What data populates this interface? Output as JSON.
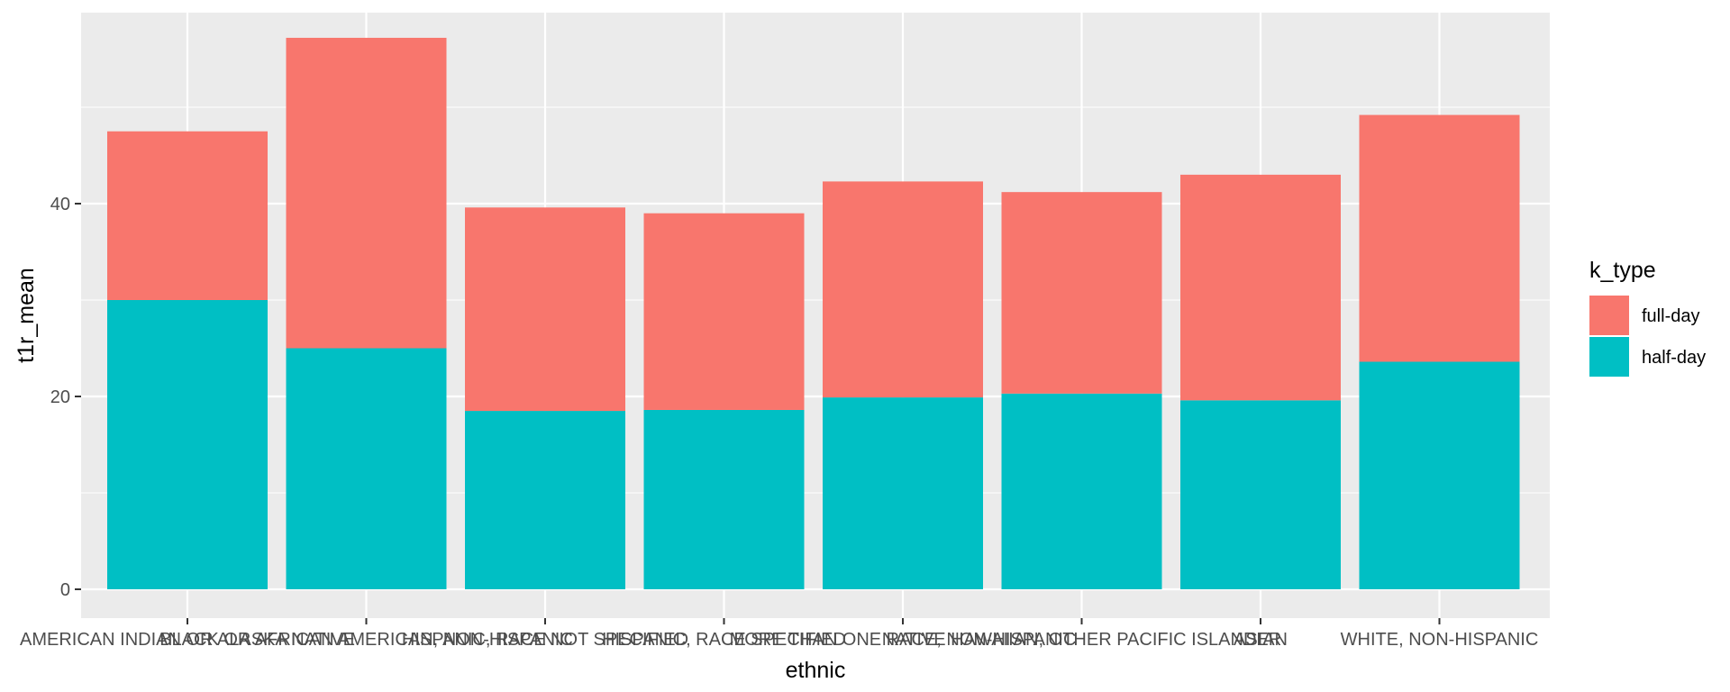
{
  "chart_data": {
    "type": "bar",
    "stacked": true,
    "title": "",
    "xlabel": "ethnic",
    "ylabel": "t1r_mean",
    "ylim": [
      0,
      60
    ],
    "yticks": [
      0,
      20,
      40
    ],
    "grid": true,
    "legend_position": "right",
    "legend_title": "k_type",
    "categories": [
      "AMERICAN INDIAN OR ALASKA NATIVE",
      "BLACK OR AFRICAN AMERICAN, NON-HISPANIC",
      "HISPANIC, RACE NOT SPECIFIED",
      "HISPANIC, RACE SPECIFIED",
      "MORE THAN ONE RACE, NON-HISPANIC",
      "NATIVE HAWAIIAN, OTHER PACIFIC ISLANDER",
      "ASIAN",
      "WHITE, NON-HISPANIC"
    ],
    "series": [
      {
        "name": "half-day",
        "color": "#00BFC4",
        "values": [
          30.0,
          25.0,
          18.5,
          18.6,
          19.9,
          20.3,
          19.6,
          23.6
        ]
      },
      {
        "name": "full-day",
        "color": "#F8766D",
        "values": [
          17.5,
          32.2,
          21.1,
          20.4,
          22.4,
          20.9,
          23.4,
          25.6
        ]
      }
    ]
  }
}
